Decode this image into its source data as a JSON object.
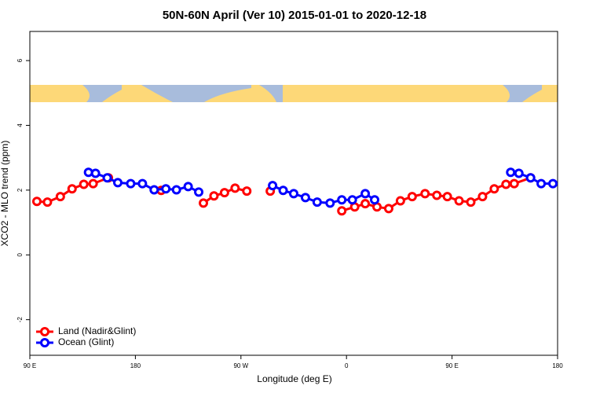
{
  "chart_data": {
    "type": "line",
    "title": "50N-60N April (Ver 10)   2015-01-01 to 2020-12-18",
    "xlabel": "Longitude (deg E)",
    "ylabel": "XCO2 - MLO trend (ppm)",
    "xlim": [
      90,
      540
    ],
    "ylim": [
      -3.1,
      6.9
    ],
    "xticks": [
      {
        "value": 90,
        "label": "90 E"
      },
      180,
      {
        "value": 270,
        "label": "90 W"
      },
      {
        "value": 360,
        "label": "0"
      },
      {
        "value": 450,
        "label": "90 E"
      },
      {
        "value": 540,
        "label": "180"
      }
    ],
    "yticks": [
      -2,
      0,
      2,
      4,
      6
    ],
    "legend": "bottom-left",
    "series": [
      {
        "name": "Land (Nadir&Glint)",
        "color": "#ff0000",
        "x": [
          96,
          105,
          116,
          126,
          136,
          144,
          157,
          null,
          202,
          null,
          238,
          247,
          256,
          265,
          275,
          null,
          295,
          null,
          356,
          367,
          376,
          386,
          396,
          406,
          416,
          427,
          437,
          446,
          456,
          466,
          476,
          486,
          496,
          503,
          517
        ],
        "values": [
          1.65,
          1.63,
          1.8,
          2.04,
          2.18,
          2.2,
          2.38,
          null,
          1.99,
          null,
          1.6,
          1.82,
          1.92,
          2.06,
          1.97,
          null,
          1.97,
          null,
          1.36,
          1.48,
          1.58,
          1.48,
          1.43,
          1.67,
          1.8,
          1.89,
          1.84,
          1.8,
          1.67,
          1.63,
          1.8,
          2.04,
          2.18,
          2.2,
          2.38
        ]
      },
      {
        "name": "Ocean (Glint)",
        "color": "#0000ff",
        "x": [
          140,
          146,
          156,
          165,
          176,
          186,
          196,
          206,
          215,
          225,
          234,
          null,
          297,
          306,
          315,
          325,
          335,
          346,
          356,
          365,
          376,
          384,
          null,
          500,
          507,
          517,
          526,
          536
        ],
        "values": [
          2.55,
          2.52,
          2.38,
          2.23,
          2.2,
          2.2,
          2.01,
          2.04,
          2.01,
          2.11,
          1.94,
          null,
          2.14,
          1.99,
          1.89,
          1.77,
          1.63,
          1.6,
          1.7,
          1.7,
          1.89,
          1.7,
          null,
          2.55,
          2.52,
          2.38,
          2.2,
          2.2
        ]
      }
    ]
  }
}
